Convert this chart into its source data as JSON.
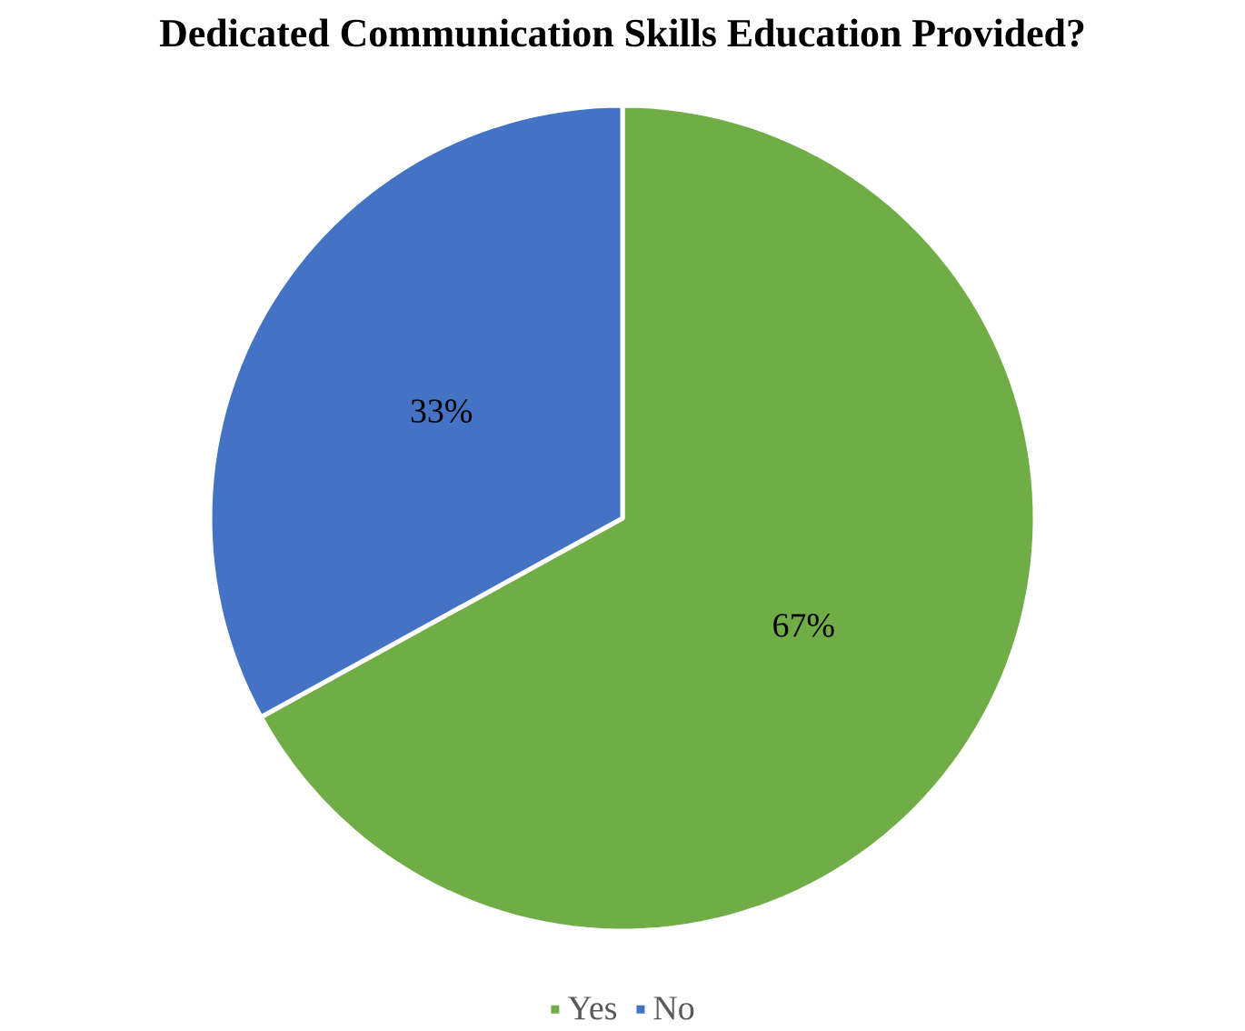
{
  "chart_data": {
    "type": "pie",
    "title": "Dedicated Communication Skills Education Provided?",
    "categories": [
      "Yes",
      "No"
    ],
    "values": [
      67,
      33
    ],
    "colors": [
      "#70ad47",
      "#4472c4"
    ],
    "value_labels": [
      "67%",
      "33%"
    ],
    "legend": "bottom"
  }
}
